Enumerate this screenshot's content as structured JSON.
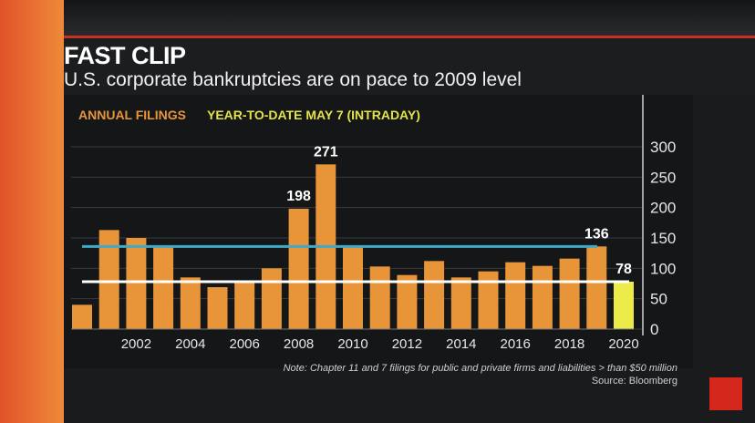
{
  "header": {
    "title": "FAST CLIP",
    "subtitle": "U.S. corporate bankruptcies are on pace to 2009 level"
  },
  "brand": {
    "logo_text": "Bloomberg"
  },
  "colors": {
    "annual": "#e8953a",
    "ytd": "#eceb4a",
    "blue_line": "#3fa9c9",
    "white_line": "#ffffff"
  },
  "chart_data": {
    "type": "bar",
    "title": "FAST CLIP",
    "legend": [
      {
        "label": "ANNUAL FILINGS"
      },
      {
        "label": "YEAR-TO-DATE MAY 7 (INTRADAY)"
      }
    ],
    "x": [
      2000,
      2001,
      2002,
      2003,
      2004,
      2005,
      2006,
      2007,
      2008,
      2009,
      2010,
      2011,
      2012,
      2013,
      2014,
      2015,
      2016,
      2017,
      2018,
      2019,
      2020
    ],
    "values": [
      40,
      163,
      150,
      136,
      85,
      69,
      78,
      100,
      198,
      271,
      135,
      103,
      89,
      112,
      85,
      95,
      110,
      104,
      116,
      136,
      78
    ],
    "ytd_index": 20,
    "data_labels": [
      {
        "year": 2008,
        "text": "198"
      },
      {
        "year": 2009,
        "text": "271"
      },
      {
        "year": 2019,
        "text": "136"
      },
      {
        "year": 2020,
        "text": "78"
      }
    ],
    "x_ticks": [
      "2002",
      "2004",
      "2006",
      "2008",
      "2010",
      "2012",
      "2014",
      "2016",
      "2018",
      "2020"
    ],
    "y_ticks": [
      "0",
      "50",
      "100",
      "150",
      "200",
      "250",
      "300"
    ],
    "ylim": [
      0,
      300
    ],
    "reference_lines": [
      {
        "name": "blue",
        "value": 136
      },
      {
        "name": "white",
        "value": 78
      }
    ],
    "grid": true,
    "yaxis_side": "right",
    "note": "Note: Chapter 11 and 7 filings for public and private firms and liabilities > than $50 million",
    "source": "Source: Bloomberg"
  }
}
